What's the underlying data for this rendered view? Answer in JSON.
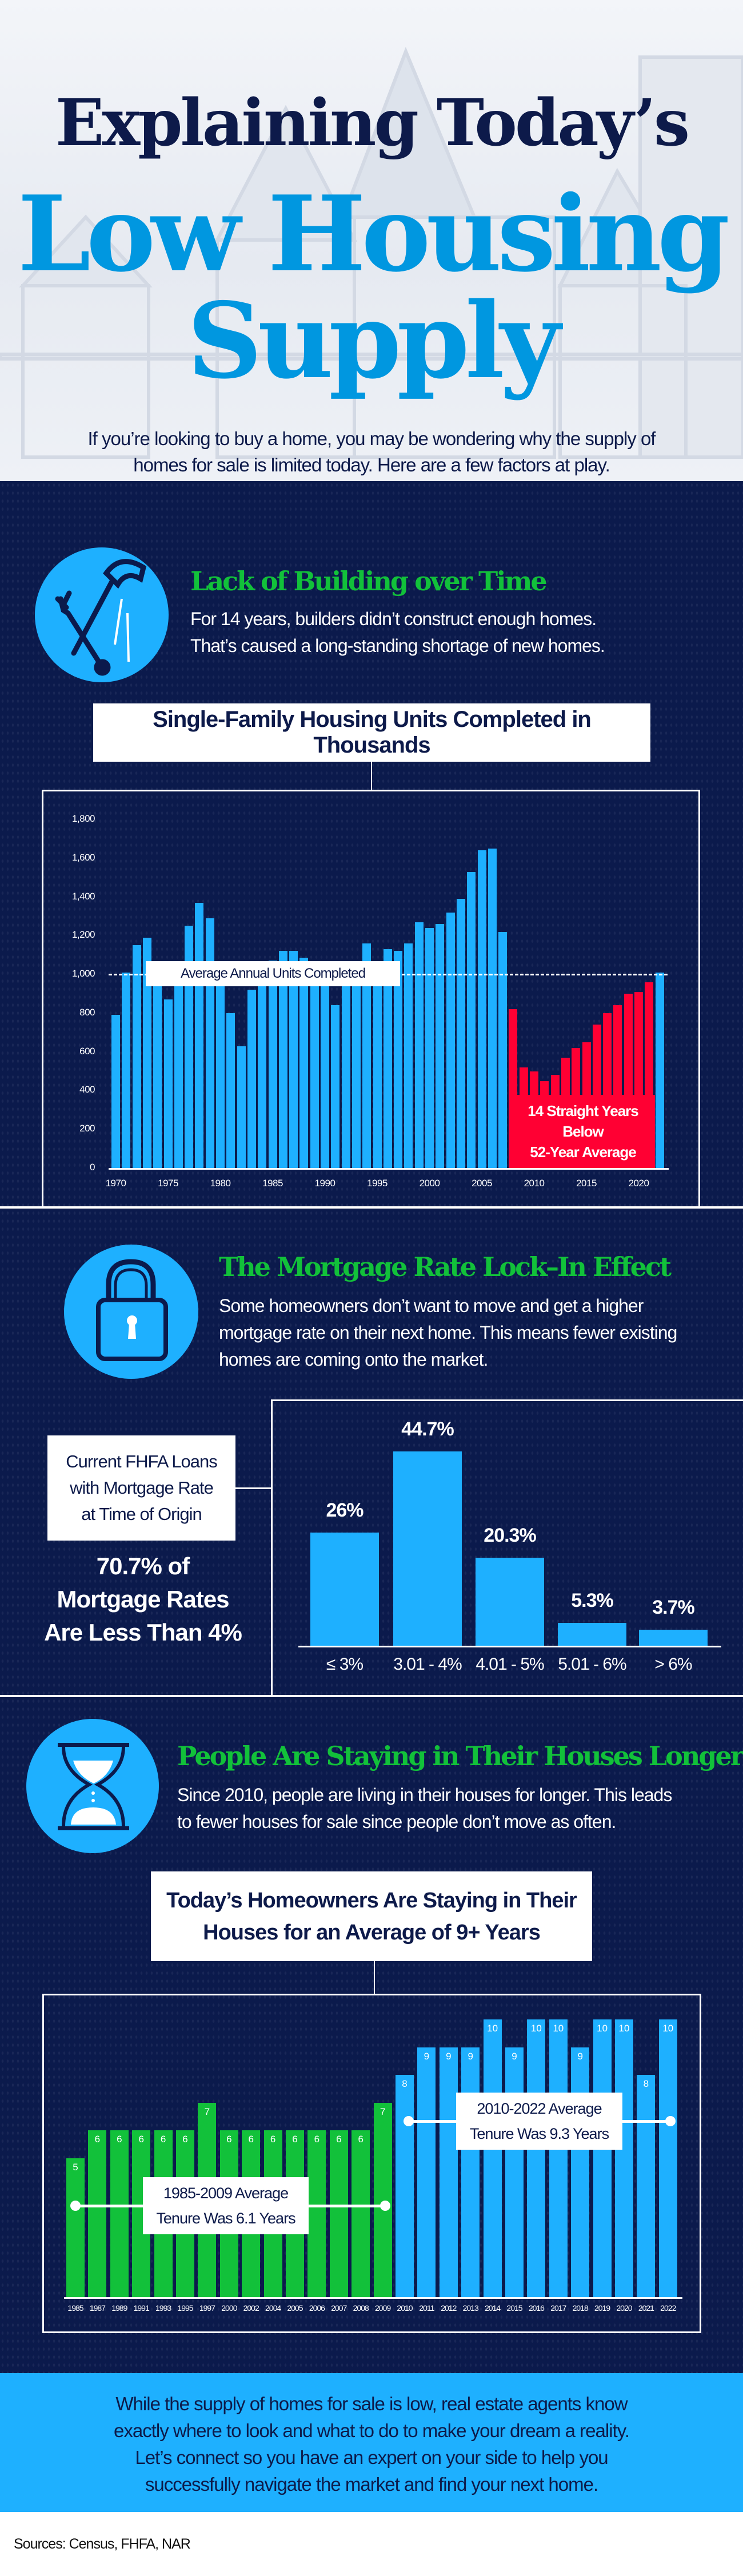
{
  "header": {
    "title_line1": "Explaining Today’s",
    "title_line2": "Low Housing",
    "title_line3": "Supply",
    "subtitle_line1": "If you’re looking to buy a home, you may be wondering why the supply of",
    "subtitle_line2": "homes for sale is limited today. Here are a few factors at play."
  },
  "sections": [
    {
      "icon": "hammer-wrench-icon",
      "heading": "Lack of Building over Time",
      "body_lines": [
        "For 14 years, builders didn’t construct enough homes.",
        "That’s caused a long-standing shortage of new homes."
      ]
    },
    {
      "icon": "padlock-icon",
      "heading": "The Mortgage Rate Lock–In Effect",
      "body_lines": [
        "Some homeowners don’t want to move and get a higher",
        "mortgage rate on their next home. This means fewer existing",
        "homes are coming onto the market."
      ],
      "side_label_lines": [
        "Current FHFA Loans",
        "with Mortgage Rate",
        "at Time of Origin"
      ],
      "callout_lines": [
        "70.7% of",
        "Mortgage Rates",
        "Are Less Than 4%"
      ]
    },
    {
      "icon": "hourglass-icon",
      "heading": "People Are Staying in Their Houses Longer",
      "body_lines": [
        "Since 2010, people are living in their houses for longer. This leads",
        "to fewer houses for sale since people don’t move as often."
      ]
    }
  ],
  "chart_data": [
    {
      "type": "bar",
      "title": "Single-Family Housing Units Completed in Thousands",
      "categories": [
        1970,
        1971,
        1972,
        1973,
        1974,
        1975,
        1976,
        1977,
        1978,
        1979,
        1980,
        1981,
        1982,
        1983,
        1984,
        1985,
        1986,
        1987,
        1988,
        1989,
        1990,
        1991,
        1992,
        1993,
        1994,
        1995,
        1996,
        1997,
        1998,
        1999,
        2000,
        2001,
        2002,
        2003,
        2004,
        2005,
        2006,
        2007,
        2008,
        2009,
        2010,
        2011,
        2012,
        2013,
        2014,
        2015,
        2016,
        2017,
        2018,
        2019,
        2020,
        2021,
        2022
      ],
      "values": [
        790,
        1010,
        1150,
        1190,
        940,
        870,
        1030,
        1250,
        1370,
        1290,
        960,
        800,
        630,
        920,
        1025,
        1070,
        1120,
        1120,
        1085,
        1025,
        965,
        840,
        965,
        1040,
        1160,
        1065,
        1130,
        1120,
        1160,
        1270,
        1240,
        1260,
        1320,
        1390,
        1530,
        1640,
        1650,
        1220,
        820,
        520,
        500,
        450,
        480,
        570,
        620,
        650,
        740,
        800,
        840,
        900,
        910,
        960,
        1010
      ],
      "highlight_range": [
        2008,
        2021
      ],
      "highlight_color": "#ff0033",
      "bar_color": "#1eb0ff",
      "ylim": [
        0,
        1800
      ],
      "yticks": [
        "0",
        "200",
        "400",
        "600",
        "800",
        "1,000",
        "1,200",
        "1,400",
        "1,600",
        "1,800"
      ],
      "xticks": [
        "1970",
        "1975",
        "1980",
        "1985",
        "1990",
        "1995",
        "2000",
        "2005",
        "2010",
        "2015",
        "2020"
      ],
      "average_line": 1000,
      "average_label": "Average Annual Units Completed",
      "highlight_label_lines": [
        "14 Straight Years",
        "Below",
        "52-Year Average"
      ]
    },
    {
      "type": "bar",
      "categories": [
        "≤ 3%",
        "3.01 - 4%",
        "4.01 - 5%",
        "5.01 - 6%",
        "> 6%"
      ],
      "values": [
        26,
        44.7,
        20.3,
        5.3,
        3.7
      ],
      "data_labels": [
        "26%",
        "44.7%",
        "20.3%",
        "5.3%",
        "3.7%"
      ],
      "bar_color": "#1eb0ff",
      "ylim": [
        0,
        50
      ]
    },
    {
      "type": "bar",
      "title": "Today’s Homeowners Are Staying in Their Houses for an Average of 9+ Years",
      "title_lines": [
        "Today’s Homeowners Are Staying in Their",
        "Houses for an Average of 9+ Years"
      ],
      "categories": [
        "1985",
        "1987",
        "1989",
        "1991",
        "1993",
        "1995",
        "1997",
        "2000",
        "2002",
        "2004",
        "2005",
        "2006",
        "2007",
        "2008",
        "2009",
        "2010",
        "2011",
        "2012",
        "2013",
        "2014",
        "2015",
        "2016",
        "2017",
        "2018",
        "2019",
        "2020",
        "2021",
        "2022"
      ],
      "values": [
        5,
        6,
        6,
        6,
        6,
        6,
        7,
        6,
        6,
        6,
        6,
        6,
        6,
        6,
        7,
        8,
        9,
        9,
        9,
        10,
        9,
        10,
        10,
        9,
        10,
        10,
        8,
        10
      ],
      "series_colors": {
        "1985-2009": "#12c13a",
        "2010-2022": "#1eb0ff"
      },
      "ylim": [
        0,
        10
      ],
      "annotations": [
        {
          "lines": [
            "1985-2009 Average",
            "Tenure Was 6.1 Years"
          ],
          "value": 6.1
        },
        {
          "lines": [
            "2010-2022 Average",
            "Tenure Was 9.3 Years"
          ],
          "value": 9.3
        }
      ]
    }
  ],
  "footer": {
    "cta_lines": [
      "While the supply of homes for sale is low, real estate agents know",
      "exactly where to look and what to do to make your dream a reality.",
      "Let’s connect so you have an expert on your side to help you",
      "successfully navigate the market and find your next home."
    ],
    "sources": "Sources: Census, FHFA, NAR"
  },
  "colors": {
    "navy": "#0b1a4c",
    "blue": "#1eb0ff",
    "green": "#12c13a",
    "red": "#ff0033",
    "title_blue": "#0097e0"
  }
}
